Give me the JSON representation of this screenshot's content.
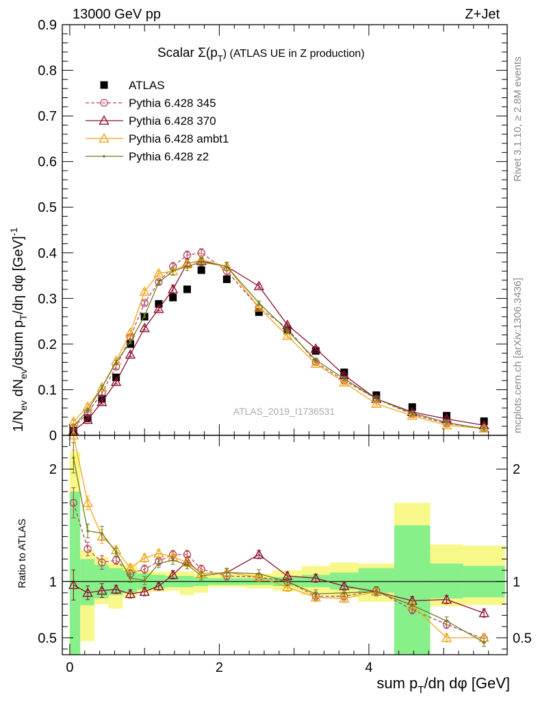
{
  "header": {
    "left": "13000 GeV pp",
    "right": "Z+Jet"
  },
  "watermark": "ATLAS_2019_I1736531",
  "side_label_top": "Rivet 3.1.10, ≥ 2.8M events",
  "side_label_bottom": "mcplots.cern.ch [arXiv:1306.3436]",
  "colors": {
    "ATLAS": "#000000",
    "p345": "#b2435e",
    "p370": "#8b0f2e",
    "ambt1": "#f0a41a",
    "z2": "#6e7b1b",
    "band_stat": "#88f088",
    "band_tot": "#f8f88a"
  },
  "chart_data": [
    {
      "id": "main",
      "type": "line",
      "title_main": "Scalar Σ(p",
      "title_sub": "T",
      "title_end": ") (ATLAS UE in Z production)",
      "ylabel": "1/N_ev dN_ev/dsum p_T/dη dφ [GeV]^-1",
      "xlim": [
        -0.1,
        5.85
      ],
      "ylim": [
        0,
        0.9
      ],
      "yticks": [
        "0",
        "0.1",
        "0.2",
        "0.3",
        "0.4",
        "0.5",
        "0.6",
        "0.7",
        "0.8",
        "0.9"
      ],
      "legend_position": "top-left",
      "x": [
        0.05,
        0.24,
        0.43,
        0.62,
        0.81,
        1.0,
        1.19,
        1.38,
        1.57,
        1.76,
        2.1,
        2.53,
        2.91,
        3.29,
        3.67,
        4.1,
        4.58,
        5.04,
        5.54
      ],
      "series": [
        {
          "name": "ATLAS",
          "key": "ATLAS",
          "marker": "square",
          "line": "none",
          "values": [
            0.01,
            0.038,
            0.08,
            0.127,
            0.2,
            0.26,
            0.288,
            0.302,
            0.32,
            0.362,
            0.342,
            0.27,
            0.23,
            0.185,
            0.138,
            0.088,
            0.062,
            0.043,
            0.031
          ]
        },
        {
          "name": "Pythia 6.428 345",
          "key": "p345",
          "marker": "circle",
          "line": "dashed",
          "values": [
            0.017,
            0.049,
            0.093,
            0.15,
            0.215,
            0.29,
            0.336,
            0.37,
            0.395,
            0.4,
            0.36,
            0.28,
            0.235,
            0.16,
            0.12,
            0.08,
            0.046,
            0.026,
            0.015
          ]
        },
        {
          "name": "Pythia 6.428 370",
          "key": "p370",
          "marker": "triangle",
          "line": "solid",
          "values": [
            0.01,
            0.034,
            0.073,
            0.117,
            0.177,
            0.235,
            0.277,
            0.32,
            0.377,
            0.382,
            0.37,
            0.327,
            0.242,
            0.19,
            0.132,
            0.08,
            0.051,
            0.036,
            0.022
          ]
        },
        {
          "name": "Pythia 6.428 ambt1",
          "key": "ambt1",
          "marker": "triangle",
          "line": "solid",
          "values": [
            0.03,
            0.063,
            0.105,
            0.163,
            0.225,
            0.315,
            0.355,
            0.36,
            0.375,
            0.385,
            0.37,
            0.28,
            0.218,
            0.157,
            0.116,
            0.069,
            0.043,
            0.022,
            0.015
          ]
        },
        {
          "name": "Pythia 6.428 z2",
          "key": "z2",
          "marker": "dot",
          "line": "solid",
          "values": [
            0.02,
            0.055,
            0.105,
            0.16,
            0.205,
            0.262,
            0.335,
            0.36,
            0.37,
            0.38,
            0.37,
            0.29,
            0.23,
            0.165,
            0.124,
            0.08,
            0.049,
            0.028,
            0.014
          ]
        }
      ]
    },
    {
      "id": "ratio",
      "type": "line",
      "ylabel": "Ratio to ATLAS",
      "xlabel": "sum p_T/dη dφ [GeV]",
      "xlim": [
        -0.1,
        5.85
      ],
      "ylim": [
        0.35,
        2.3
      ],
      "xticks": [
        "0",
        "2",
        "4"
      ],
      "yticks": [
        "0.5",
        "1",
        "2"
      ],
      "reference": 1,
      "bin_edges": [
        0.0,
        0.14,
        0.33,
        0.52,
        0.71,
        0.9,
        1.09,
        1.28,
        1.47,
        1.66,
        1.85,
        2.35,
        2.72,
        3.1,
        3.48,
        3.86,
        4.34,
        4.82,
        5.26,
        5.82
      ],
      "band_stat_low": [
        0.35,
        0.79,
        0.85,
        0.88,
        0.9,
        0.93,
        0.94,
        0.95,
        0.95,
        0.96,
        0.97,
        0.97,
        0.96,
        0.95,
        0.93,
        0.9,
        0.35,
        0.85,
        0.86
      ],
      "band_stat_high": [
        1.8,
        1.2,
        1.15,
        1.12,
        1.1,
        1.07,
        1.06,
        1.05,
        1.05,
        1.04,
        1.03,
        1.03,
        1.04,
        1.06,
        1.08,
        1.12,
        1.5,
        1.16,
        1.14
      ],
      "band_tot_low": [
        0.35,
        0.47,
        0.8,
        0.76,
        0.86,
        0.9,
        0.91,
        0.92,
        0.88,
        0.9,
        0.95,
        0.94,
        0.92,
        0.88,
        0.86,
        0.82,
        0.35,
        0.78,
        0.79
      ],
      "band_tot_high": [
        2.15,
        1.28,
        1.22,
        1.17,
        1.15,
        1.1,
        1.09,
        1.09,
        1.09,
        1.07,
        1.06,
        1.07,
        1.1,
        1.14,
        1.17,
        1.16,
        1.7,
        1.33,
        1.32
      ],
      "series": [
        {
          "name": "Pythia 6.428 345",
          "key": "p345",
          "marker": "circle",
          "line": "dashed",
          "values": [
            1.7,
            1.29,
            1.17,
            1.19,
            1.07,
            1.11,
            1.18,
            1.24,
            1.24,
            1.11,
            1.05,
            1.04,
            1.0,
            0.87,
            0.87,
            0.92,
            0.75,
            0.62,
            0.49
          ]
        },
        {
          "name": "Pythia 6.428 370",
          "key": "p370",
          "marker": "triangle",
          "line": "solid",
          "values": [
            0.97,
            0.9,
            0.92,
            0.93,
            0.89,
            0.91,
            0.96,
            1.06,
            1.18,
            1.07,
            1.08,
            1.24,
            1.05,
            1.03,
            0.96,
            0.91,
            0.83,
            0.84,
            0.72
          ]
        },
        {
          "name": "Pythia 6.428 ambt1",
          "key": "ambt1",
          "marker": "triangle",
          "line": "solid",
          "values": [
            2.3,
            1.7,
            1.4,
            1.28,
            1.12,
            1.21,
            1.25,
            1.22,
            1.17,
            1.07,
            1.08,
            1.04,
            0.95,
            0.86,
            0.85,
            0.91,
            0.79,
            0.5,
            0.5
          ]
        },
        {
          "name": "Pythia 6.428 z2",
          "key": "z2",
          "marker": "dot",
          "line": "solid",
          "values": [
            2.1,
            1.45,
            1.43,
            1.26,
            1.03,
            1.01,
            1.16,
            1.19,
            1.15,
            1.05,
            1.08,
            1.07,
            1.0,
            0.89,
            0.9,
            0.91,
            0.79,
            0.65,
            0.46
          ]
        }
      ]
    }
  ]
}
